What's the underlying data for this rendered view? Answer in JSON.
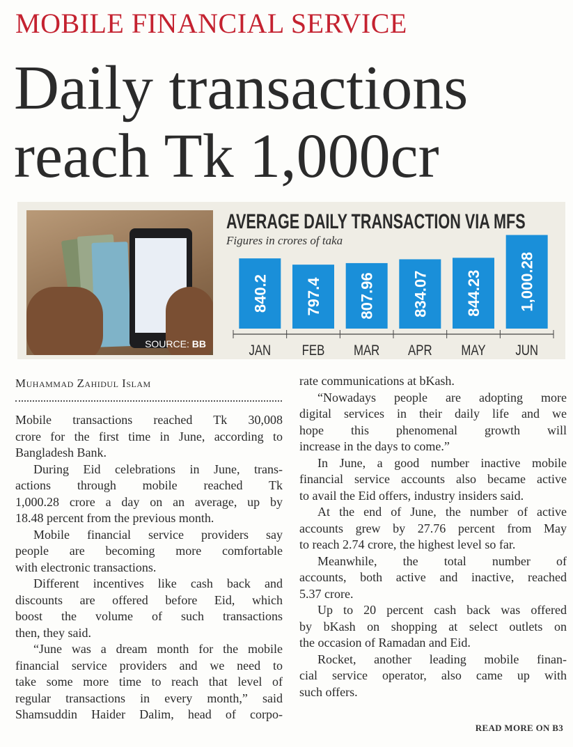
{
  "kicker": "MOBILE FINANCIAL SERVICE",
  "headline": [
    "Daily transactions",
    "reach Tk 1,000cr"
  ],
  "graphic": {
    "source_label": "SOURCE:",
    "source_value": "BB"
  },
  "chart_data": {
    "type": "bar",
    "title": "AVERAGE DAILY TRANSACTION VIA MFS",
    "subtitle": "Figures in crores of taka",
    "categories": [
      "JAN",
      "FEB",
      "MAR",
      "APR",
      "MAY",
      "JUN"
    ],
    "values": [
      840.2,
      797.4,
      807.96,
      834.07,
      844.23,
      1000.28
    ],
    "data_labels": [
      "840.2",
      "797.4",
      "807.96",
      "834.07",
      "844.23",
      "1,000.28"
    ],
    "bar_color": "#1a8fd9",
    "grid": false,
    "legend": "none"
  },
  "byline": "Muhammad Zahidul Islam",
  "columns": [
    [
      {
        "lines": [
          "Mobile transactions reached Tk 30,008",
          "crore for the first time in June, according to",
          "Bangladesh Bank."
        ]
      },
      {
        "indent": true,
        "lines": [
          "During Eid celebrations in June, trans-",
          "actions through mobile reached Tk",
          "1,000.28 crore a day on an average, up by",
          "18.48 percent from the previous month."
        ]
      },
      {
        "indent": true,
        "lines": [
          "Mobile financial service providers say",
          "people are becoming more comfortable",
          "with electronic transactions."
        ]
      },
      {
        "indent": true,
        "lines": [
          "Different incentives like cash back and",
          "discounts are offered before Eid, which",
          "boost the volume of such transactions",
          "then, they said."
        ]
      },
      {
        "indent": true,
        "cont": true,
        "lines": [
          "“June was a dream month for the mobile",
          "financial service providers and we need to",
          "take some more time to reach that level of",
          "regular transactions in every month,” said",
          "Shamsuddin Haider Dalim, head of corpo-"
        ]
      }
    ],
    [
      {
        "lines": [
          "rate communications at bKash."
        ]
      },
      {
        "indent": true,
        "lines": [
          "“Nowadays people are adopting more",
          "digital services in their daily life and we",
          "hope this phenomenal growth will",
          "increase in the days to come.”"
        ]
      },
      {
        "indent": true,
        "lines": [
          "In June, a good number inactive mobile",
          "financial service accounts also became active",
          "to avail the Eid offers, industry insiders said."
        ]
      },
      {
        "indent": true,
        "lines": [
          "At the end of June, the number of active",
          "accounts grew by 27.76 percent from May",
          "to reach 2.74 crore, the highest level so far."
        ]
      },
      {
        "indent": true,
        "lines": [
          "Meanwhile, the total number of",
          "accounts, both active and inactive, reached",
          "5.37 crore."
        ]
      },
      {
        "indent": true,
        "lines": [
          "Up to 20 percent cash back was offered",
          "by bKash on shopping at select outlets on",
          "the occasion of Ramadan and Eid."
        ]
      },
      {
        "indent": true,
        "lines": [
          "Rocket, another leading mobile finan-",
          "cial service operator, also came up with",
          "such offers."
        ]
      }
    ]
  ],
  "read_more": "READ MORE ON B3"
}
